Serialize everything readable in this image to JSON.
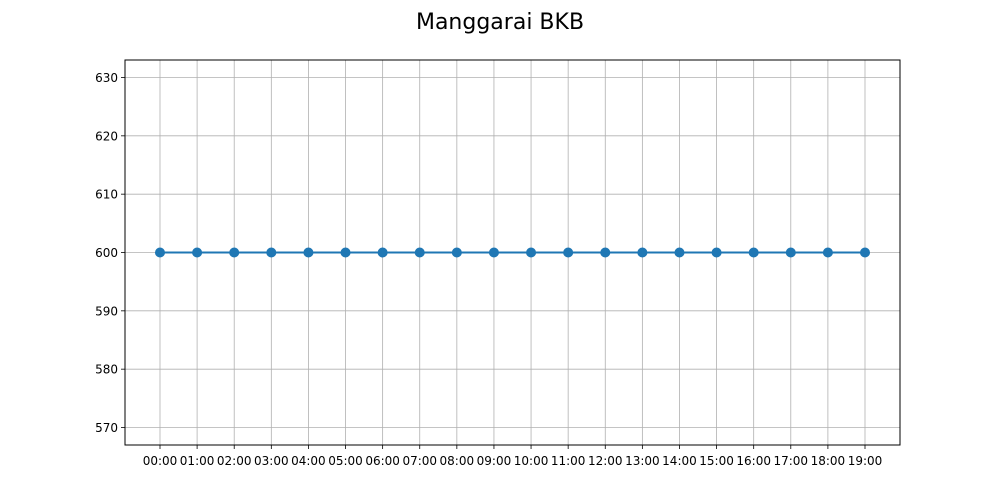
{
  "chart_data": {
    "type": "line",
    "title": "Manggarai BKB",
    "xlabel": "",
    "ylabel": "",
    "categories": [
      "00:00",
      "01:00",
      "02:00",
      "03:00",
      "04:00",
      "05:00",
      "06:00",
      "07:00",
      "08:00",
      "09:00",
      "10:00",
      "11:00",
      "12:00",
      "13:00",
      "14:00",
      "15:00",
      "16:00",
      "17:00",
      "18:00",
      "19:00"
    ],
    "series": [
      {
        "values": [
          600,
          600,
          600,
          600,
          600,
          600,
          600,
          600,
          600,
          600,
          600,
          600,
          600,
          600,
          600,
          600,
          600,
          600,
          600,
          600
        ],
        "color": "#1f77b4",
        "marker": "circle"
      }
    ],
    "ylim": [
      567,
      633
    ],
    "yticks": [
      570,
      580,
      590,
      600,
      610,
      620,
      630
    ],
    "grid": true,
    "legend": "none"
  }
}
